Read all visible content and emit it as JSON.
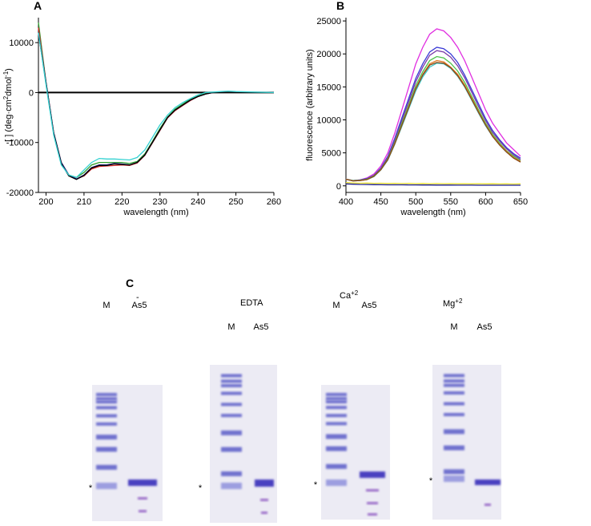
{
  "chart_data": [
    {
      "type": "line",
      "panel": "A",
      "xlabel": "wavelength (nm)",
      "ylabel": [
        "[ ] (deg·cm",
        "2",
        "dmol",
        "-1",
        ")"
      ],
      "xlim": [
        198,
        260
      ],
      "xticks": [
        200,
        210,
        220,
        230,
        240,
        250,
        260
      ],
      "ylim": [
        -20000,
        15000
      ],
      "yticks": [
        -20000,
        -10000,
        0,
        10000
      ],
      "zero_line": true,
      "x": [
        198,
        200,
        202,
        204,
        206,
        208,
        210,
        212,
        214,
        216,
        218,
        220,
        222,
        224,
        226,
        228,
        230,
        232,
        234,
        236,
        238,
        240,
        242,
        244,
        246,
        248,
        250,
        255,
        260
      ],
      "series": [
        {
          "color": "#2e9e2e",
          "values": [
            14000,
            2000,
            -8000,
            -14000,
            -16500,
            -17000,
            -16000,
            -14500,
            -14000,
            -14000,
            -14000,
            -14000,
            -14200,
            -13800,
            -12300,
            -9800,
            -7200,
            -4900,
            -3300,
            -2300,
            -1300,
            -600,
            -200,
            0,
            100,
            100,
            100,
            50,
            0
          ]
        },
        {
          "color": "#d42a2a",
          "values": [
            13000,
            2000,
            -8000,
            -14000,
            -16500,
            -17300,
            -16700,
            -15300,
            -14800,
            -14700,
            -14600,
            -14500,
            -14600,
            -14100,
            -12600,
            -10100,
            -7600,
            -5100,
            -3600,
            -2600,
            -1600,
            -800,
            -300,
            0,
            0,
            0,
            0,
            0,
            0
          ]
        },
        {
          "color": "#1c1c8c",
          "values": [
            12000,
            2000,
            -8000,
            -14000,
            -16500,
            -17300,
            -16500,
            -15000,
            -14500,
            -14500,
            -14200,
            -14300,
            -14500,
            -14000,
            -12500,
            -10000,
            -7500,
            -5000,
            -3500,
            -2500,
            -1500,
            -800,
            -300,
            0,
            0,
            0,
            0,
            0,
            0
          ]
        },
        {
          "color": "#000000",
          "values": [
            12000,
            1800,
            -8200,
            -14200,
            -16700,
            -17400,
            -16600,
            -15100,
            -14600,
            -14600,
            -14300,
            -14400,
            -14500,
            -14000,
            -12500,
            -10000,
            -7500,
            -5000,
            -3500,
            -2500,
            -1500,
            -800,
            -300,
            0,
            0,
            0,
            0,
            0,
            0
          ]
        },
        {
          "color": "#35d2d2",
          "values": [
            12000,
            1500,
            -8500,
            -14500,
            -16500,
            -17000,
            -15500,
            -14000,
            -13200,
            -13300,
            -13300,
            -13400,
            -13500,
            -13000,
            -11500,
            -9000,
            -6500,
            -4500,
            -3000,
            -2000,
            -1200,
            -500,
            0,
            100,
            200,
            300,
            200,
            100,
            0
          ]
        }
      ]
    },
    {
      "type": "line",
      "panel": "B",
      "xlabel": "wavelength (nm)",
      "ylabel": [
        "fluorescence (arbitrary units)"
      ],
      "xlim": [
        400,
        650
      ],
      "xticks": [
        400,
        450,
        500,
        550,
        600,
        650
      ],
      "ylim": [
        -1000,
        25500
      ],
      "yticks": [
        0,
        5000,
        10000,
        15000,
        20000,
        25000
      ],
      "zero_line": false,
      "x": [
        400,
        410,
        420,
        430,
        440,
        450,
        460,
        470,
        480,
        490,
        500,
        510,
        520,
        530,
        540,
        550,
        560,
        570,
        580,
        590,
        600,
        610,
        620,
        630,
        640,
        650
      ],
      "series": [
        {
          "color": "#e02ee0",
          "values": [
            1000,
            800,
            900,
            1200,
            1800,
            3000,
            5000,
            8000,
            11500,
            15000,
            18500,
            21000,
            23000,
            23800,
            23500,
            22500,
            21000,
            19000,
            16500,
            14000,
            11500,
            9500,
            8000,
            6500,
            5500,
            4500
          ]
        },
        {
          "color": "#3a3ad6",
          "values": [
            1000,
            800,
            900,
            1100,
            1600,
            2700,
            4500,
            7200,
            10300,
            13300,
            16300,
            18500,
            20300,
            21000,
            20800,
            20000,
            18700,
            16800,
            14600,
            12400,
            10200,
            8400,
            7000,
            5800,
            4900,
            4200
          ]
        },
        {
          "color": "#7a3aa8",
          "values": [
            1000,
            800,
            850,
            1050,
            1550,
            2600,
            4300,
            6900,
            9900,
            12800,
            15800,
            18000,
            19800,
            20500,
            20300,
            19500,
            18200,
            16400,
            14200,
            12000,
            9900,
            8100,
            6800,
            5600,
            4700,
            4000
          ]
        },
        {
          "color": "#4cc24c",
          "values": [
            1000,
            800,
            850,
            1000,
            1500,
            2500,
            4100,
            6600,
            9500,
            12300,
            15200,
            17300,
            19000,
            19600,
            19400,
            18600,
            17400,
            15700,
            13600,
            11500,
            9500,
            7800,
            6500,
            5300,
            4500,
            3800
          ]
        },
        {
          "color": "#3cc8c8",
          "values": [
            1000,
            750,
            800,
            950,
            1400,
            2400,
            3900,
            6300,
            9000,
            11700,
            14400,
            16500,
            18000,
            18600,
            18500,
            17800,
            16600,
            15000,
            13000,
            11000,
            9100,
            7500,
            6200,
            5100,
            4300,
            3700
          ]
        },
        {
          "color": "#e07820",
          "values": [
            1000,
            750,
            800,
            950,
            1450,
            2450,
            4000,
            6400,
            9200,
            12000,
            14800,
            16900,
            18500,
            19000,
            18800,
            18000,
            16900,
            15300,
            13300,
            11200,
            9300,
            7600,
            6300,
            5200,
            4300,
            3700
          ]
        },
        {
          "color": "#8a4a1a",
          "values": [
            1000,
            750,
            800,
            950,
            1450,
            2450,
            4000,
            6400,
            9200,
            11900,
            14700,
            16800,
            18300,
            18700,
            18600,
            17900,
            16700,
            15100,
            13100,
            11100,
            9200,
            7500,
            6200,
            5100,
            4200,
            3600
          ]
        },
        {
          "color": "#e8e030",
          "values": [
            500,
            450,
            400,
            420,
            380,
            400,
            360,
            380,
            350,
            370,
            340,
            360,
            330,
            350,
            320,
            340,
            310,
            330,
            300,
            320,
            300,
            310,
            290,
            300,
            280,
            300
          ]
        },
        {
          "color": "#1c1c8c",
          "values": [
            300,
            250,
            220,
            200,
            180,
            170,
            160,
            150,
            150,
            140,
            140,
            130,
            130,
            120,
            120,
            120,
            110,
            110,
            110,
            100,
            100,
            100,
            100,
            100,
            100,
            100
          ]
        }
      ]
    }
  ],
  "gels": {
    "panel": "C",
    "lane_labels": [
      "M",
      "As5"
    ],
    "marker": "*",
    "conditions": [
      {
        "label": "-"
      },
      {
        "label": "EDTA"
      },
      {
        "label": "Ca",
        "charge": "+2"
      },
      {
        "label": "Mg",
        "charge": "+2"
      }
    ]
  }
}
